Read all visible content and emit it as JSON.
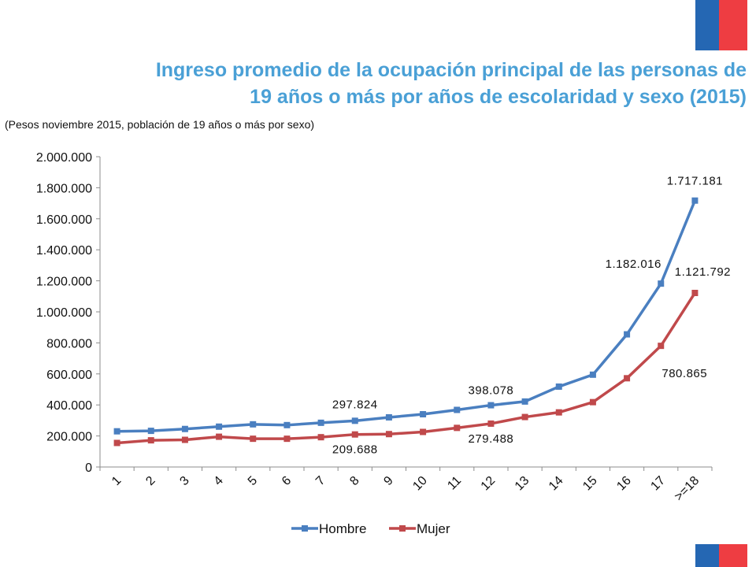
{
  "header": {
    "title_line1": "Ingreso promedio de la ocupación principal de las personas de",
    "title_line2": "19 años o más por años de escolaridad y sexo (2015)",
    "subtitle": "(Pesos noviembre 2015, población de 19 años o más por sexo)"
  },
  "colors": {
    "title": "#4aa0d6",
    "hombre": "#4a7fc0",
    "mujer": "#c0494b",
    "flag_blue": "#2567b3",
    "flag_red": "#ee3d42"
  },
  "chart_data": {
    "type": "line",
    "categories": [
      "1",
      "2",
      "3",
      "4",
      "5",
      "6",
      "7",
      "8",
      "9",
      "10",
      "11",
      "12",
      "13",
      "14",
      "15",
      "16",
      "17",
      ">=18"
    ],
    "ylim": [
      0,
      2000000
    ],
    "yticks": [
      "0",
      "200.000",
      "400.000",
      "600.000",
      "800.000",
      "1.000.000",
      "1.200.000",
      "1.400.000",
      "1.600.000",
      "1.800.000",
      "2.000.000"
    ],
    "series": [
      {
        "name": "Hombre",
        "values": [
          230000,
          233000,
          245000,
          260000,
          275000,
          270000,
          285000,
          297824,
          320000,
          340000,
          368000,
          398078,
          422000,
          518000,
          595000,
          855000,
          1182016,
          1717181
        ]
      },
      {
        "name": "Mujer",
        "values": [
          155000,
          172000,
          175000,
          195000,
          182000,
          182000,
          192000,
          209688,
          212000,
          226000,
          252000,
          279488,
          322000,
          352000,
          418000,
          572000,
          780865,
          1121792
        ]
      }
    ],
    "data_labels": [
      {
        "series": 0,
        "index": 7,
        "text": "297.824"
      },
      {
        "series": 0,
        "index": 11,
        "text": "398.078"
      },
      {
        "series": 0,
        "index": 16,
        "text": "1.182.016"
      },
      {
        "series": 0,
        "index": 17,
        "text": "1.717.181"
      },
      {
        "series": 1,
        "index": 7,
        "text": "209.688"
      },
      {
        "series": 1,
        "index": 11,
        "text": "279.488"
      },
      {
        "series": 1,
        "index": 16,
        "text": "780.865"
      },
      {
        "series": 1,
        "index": 17,
        "text": "1.121.792"
      }
    ],
    "legend": [
      "Hombre",
      "Mujer"
    ],
    "legend_position": "bottom",
    "grid": false
  }
}
